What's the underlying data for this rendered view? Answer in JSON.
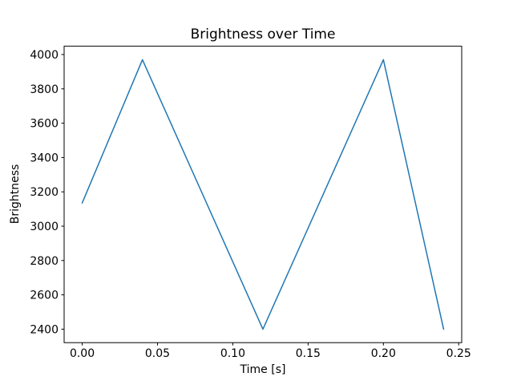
{
  "figure": {
    "background": "#ffffff",
    "spine_color": "#000000",
    "text_color": "#000000"
  },
  "chart_data": {
    "type": "line",
    "title": "Brightness over Time",
    "xlabel": "Time [s]",
    "ylabel": "Brightness",
    "x": [
      0.0,
      0.04,
      0.12,
      0.2,
      0.24
    ],
    "y": [
      3135,
      3970,
      2400,
      3970,
      2400
    ],
    "series": [
      {
        "name": "brightness",
        "x": [
          0.0,
          0.04,
          0.12,
          0.2,
          0.24
        ],
        "y": [
          3135,
          3970,
          2400,
          3970,
          2400
        ]
      }
    ],
    "line_color": "#1f77b4",
    "line_width": 1.5,
    "markers": false,
    "grid": false,
    "legend": null,
    "xlim": [
      -0.012,
      0.252
    ],
    "ylim": [
      2321.5,
      4048.5
    ],
    "xticks": {
      "values": [
        0.0,
        0.05,
        0.1,
        0.15,
        0.2,
        0.25
      ],
      "labels": [
        "0.00",
        "0.05",
        "0.10",
        "0.15",
        "0.20",
        "0.25"
      ]
    },
    "yticks": {
      "values": [
        2400,
        2600,
        2800,
        3000,
        3200,
        3400,
        3600,
        3800,
        4000
      ],
      "labels": [
        "2400",
        "2600",
        "2800",
        "3000",
        "3200",
        "3400",
        "3600",
        "3800",
        "4000"
      ]
    }
  }
}
